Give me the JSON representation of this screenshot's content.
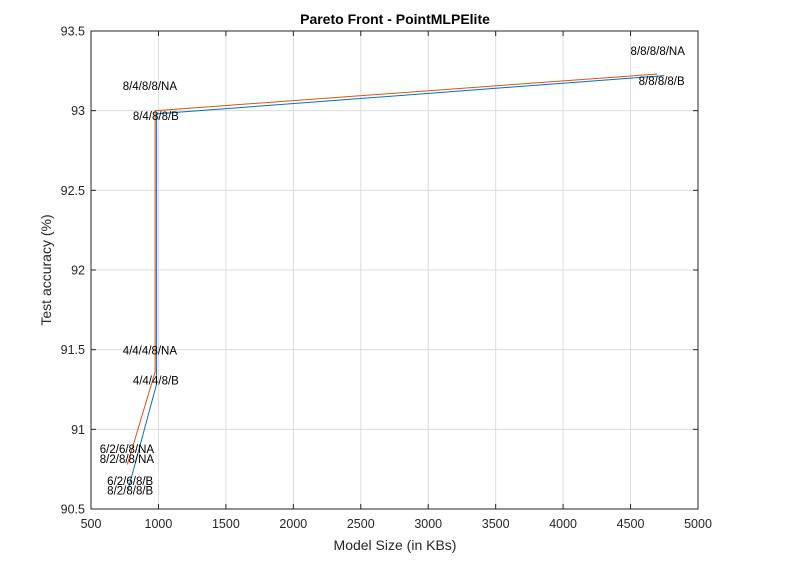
{
  "chart_data": {
    "type": "line",
    "title": "Pareto Front - PointMLPElite",
    "xlabel": "Model Size (in KBs)",
    "ylabel": "Test accuracy (%)",
    "xlim": [
      500,
      5000
    ],
    "ylim": [
      90.5,
      93.5
    ],
    "xticks": [
      500,
      1000,
      1500,
      2000,
      2500,
      3000,
      3500,
      4000,
      4500,
      5000
    ],
    "xtick_labels": [
      "500",
      "1000",
      "1500",
      "2000",
      "2500",
      "3000",
      "3500",
      "4000",
      "4500",
      "5000"
    ],
    "yticks": [
      90.5,
      91,
      91.5,
      92,
      92.5,
      93,
      93.5
    ],
    "ytick_labels": [
      "90.5",
      "91",
      "91.5",
      "92",
      "92.5",
      "93",
      "93.5"
    ],
    "grid": true,
    "series": [
      {
        "color": "#0072bd",
        "x": [
          775,
          985,
          985,
          4750
        ],
        "y": [
          90.62,
          91.28,
          92.98,
          93.22
        ]
      },
      {
        "color": "#d95319",
        "x": [
          770,
          975,
          975,
          4700
        ],
        "y": [
          90.78,
          91.36,
          93.0,
          93.23
        ]
      }
    ],
    "annotations": [
      {
        "text": "8/8/8/8/NA",
        "x": 4500,
        "y": 93.35
      },
      {
        "text": "8/8/8/8/B",
        "x": 4560,
        "y": 93.16
      },
      {
        "text": "8/4/8/8/NA",
        "x": 735,
        "y": 93.13
      },
      {
        "text": "8/4/8/8/B",
        "x": 810,
        "y": 92.94
      },
      {
        "text": "4/4/4/8/NA",
        "x": 735,
        "y": 91.47
      },
      {
        "text": "4/4/4/8/B",
        "x": 810,
        "y": 91.28
      },
      {
        "text": "6/2/6/8/NA",
        "x": 565,
        "y": 90.85
      },
      {
        "text": "8/2/8/8/NA",
        "x": 565,
        "y": 90.79
      },
      {
        "text": "6/2/6/8/B",
        "x": 620,
        "y": 90.65
      },
      {
        "text": "8/2/8/8/B",
        "x": 620,
        "y": 90.59
      }
    ]
  }
}
